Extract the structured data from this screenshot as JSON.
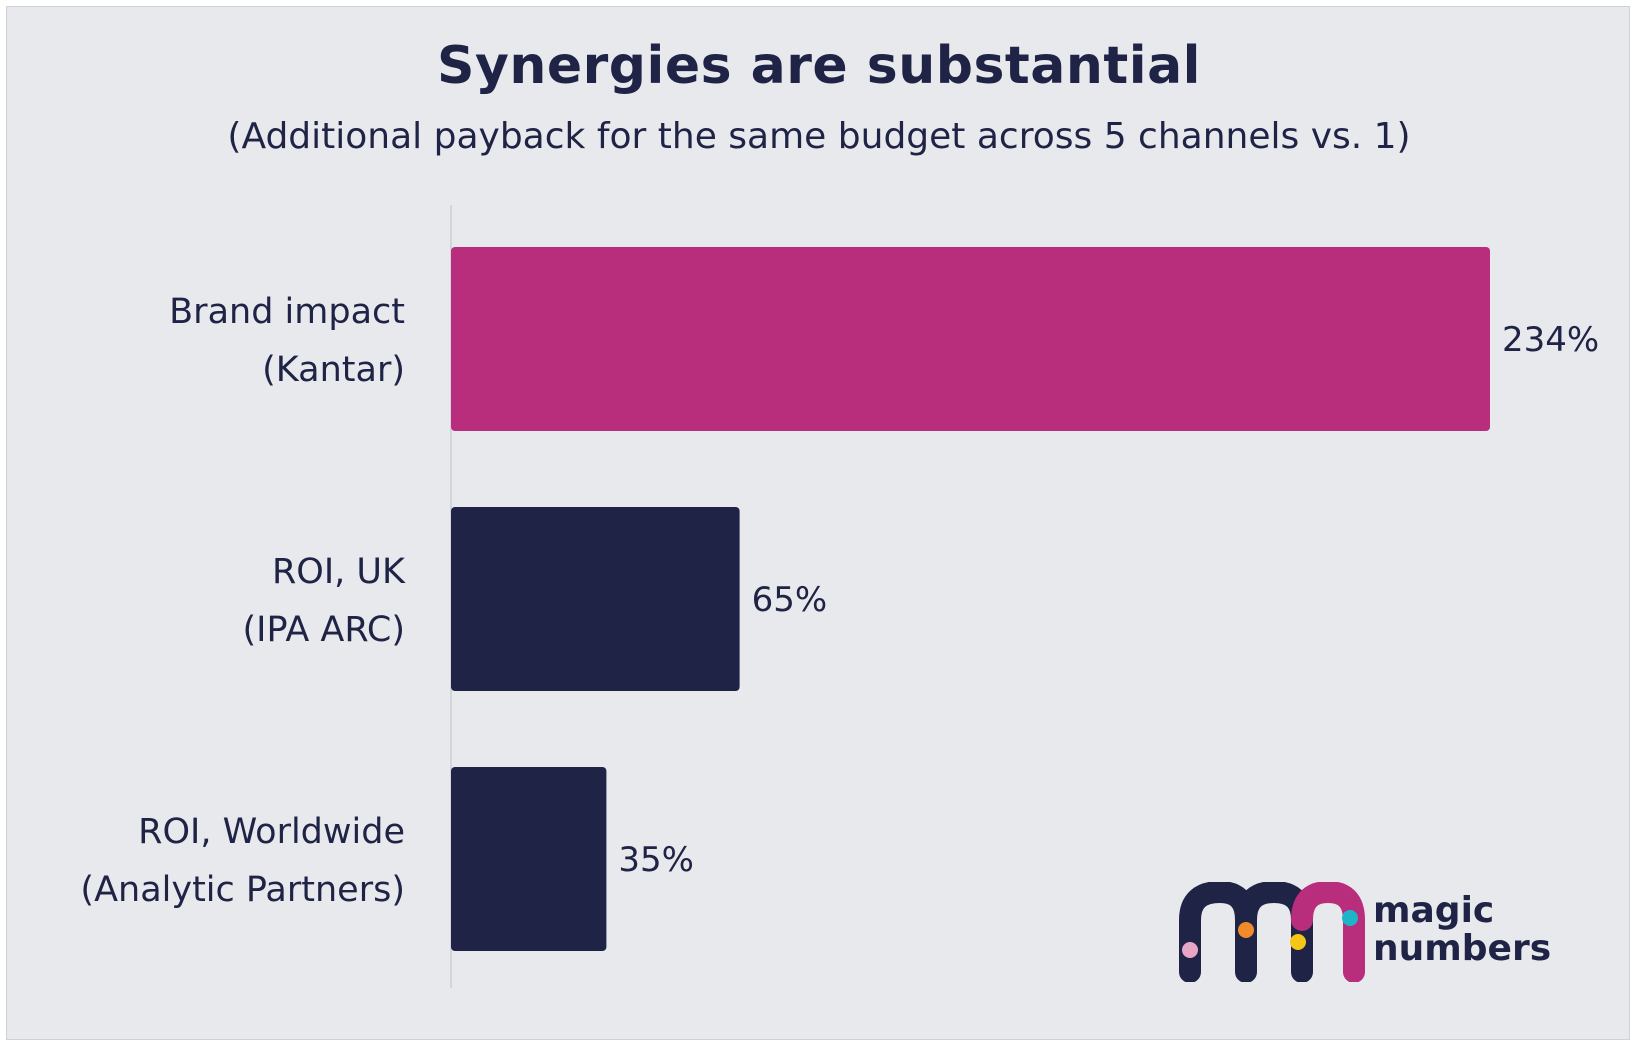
{
  "title": "Synergies are substantial",
  "subtitle": "(Additional payback for the same budget across 5 channels vs. 1)",
  "chart_data": {
    "type": "bar",
    "orientation": "horizontal",
    "categories": [
      [
        "Brand impact",
        "(Kantar)"
      ],
      [
        "ROI, UK",
        "(IPA ARC)"
      ],
      [
        "ROI, Worldwide",
        "(Analytic Partners)"
      ]
    ],
    "values": [
      234,
      65,
      35
    ],
    "value_labels": [
      "234%",
      "65%",
      "35%"
    ],
    "colors": [
      "#b82d7c",
      "#1f2447",
      "#1f2447"
    ],
    "xlim": [
      0,
      234
    ],
    "grid": false,
    "legend": "none"
  },
  "logo": {
    "line1": "magic",
    "line2": "numbers",
    "colors": {
      "dark": "#1f2447",
      "magenta": "#b82d7c",
      "dot_pink": "#e8a6c4",
      "dot_orange": "#f08a2b",
      "dot_yellow": "#f5c518",
      "dot_teal": "#1fb5c8"
    }
  }
}
